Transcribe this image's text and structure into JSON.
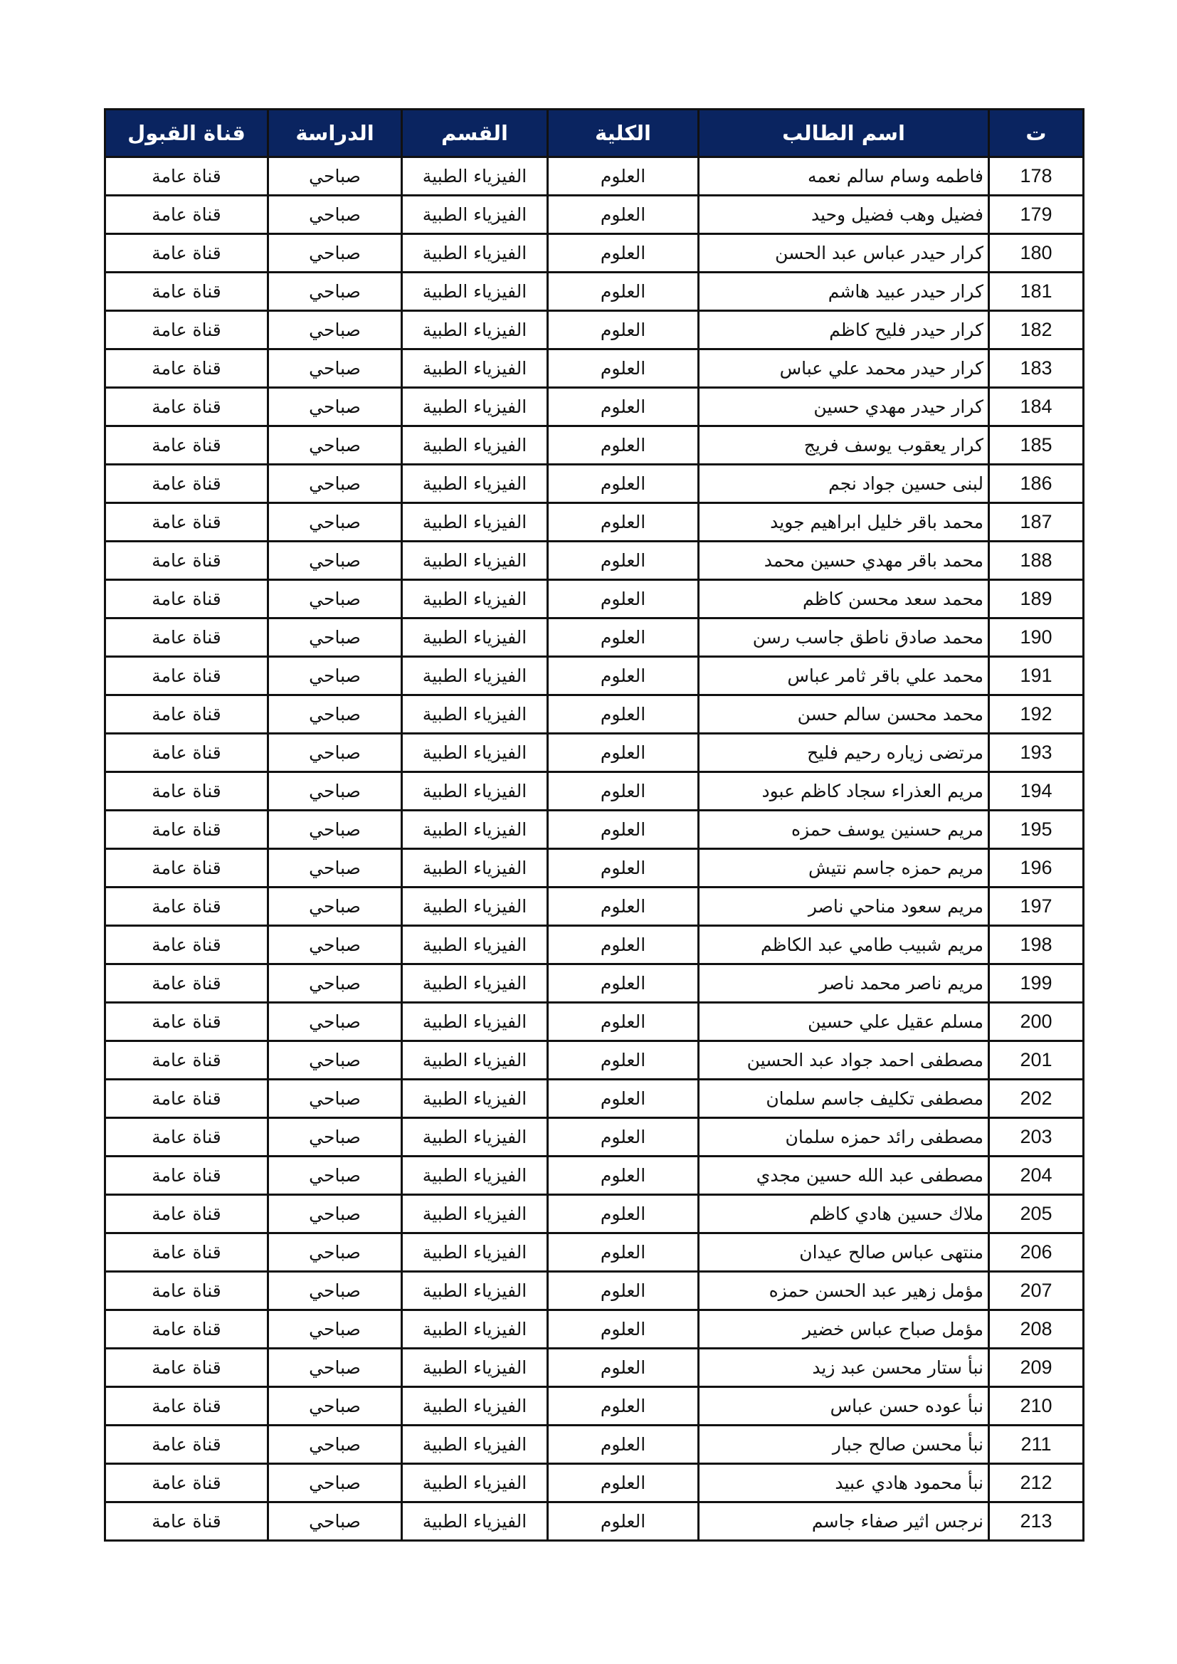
{
  "table": {
    "headers": {
      "seq": "ت",
      "name": "اسم الطالب",
      "college": "الكلية",
      "department": "القسم",
      "study": "الدراسة",
      "channel": "قناة القبول"
    },
    "header_color": "#0a2460",
    "college": "العلوم",
    "department": "الفيزياء الطبية",
    "study": "صباحي",
    "channel": "قناة عامة",
    "rows": [
      {
        "n": "178",
        "name": "فاطمه وسام سالم نعمه"
      },
      {
        "n": "179",
        "name": "فضيل وهب فضيل وحيد"
      },
      {
        "n": "180",
        "name": "كرار حيدر عباس عبد الحسن"
      },
      {
        "n": "181",
        "name": "كرار حيدر عبيد هاشم"
      },
      {
        "n": "182",
        "name": "كرار حيدر فليح كاظم"
      },
      {
        "n": "183",
        "name": "كرار حيدر محمد علي عباس"
      },
      {
        "n": "184",
        "name": "كرار حيدر مهدي حسين"
      },
      {
        "n": "185",
        "name": "كرار يعقوب يوسف فريج"
      },
      {
        "n": "186",
        "name": "لبنى حسين جواد نجم"
      },
      {
        "n": "187",
        "name": "محمد باقر خليل ابراهيم جويد"
      },
      {
        "n": "188",
        "name": "محمد باقر مهدي حسين محمد"
      },
      {
        "n": "189",
        "name": "محمد سعد محسن كاظم"
      },
      {
        "n": "190",
        "name": "محمد صادق ناطق جاسب رسن"
      },
      {
        "n": "191",
        "name": "محمد علي باقر ثامر عباس"
      },
      {
        "n": "192",
        "name": "محمد محسن سالم حسن"
      },
      {
        "n": "193",
        "name": "مرتضى زياره رحيم فليح"
      },
      {
        "n": "194",
        "name": "مريم العذراء سجاد كاظم عبود"
      },
      {
        "n": "195",
        "name": "مريم حسنين يوسف حمزه"
      },
      {
        "n": "196",
        "name": "مريم حمزه جاسم نتيش"
      },
      {
        "n": "197",
        "name": "مريم سعود مناحي ناصر"
      },
      {
        "n": "198",
        "name": "مريم شبيب طامي عبد الكاظم"
      },
      {
        "n": "199",
        "name": "مريم ناصر محمد ناصر"
      },
      {
        "n": "200",
        "name": "مسلم عقيل علي حسين"
      },
      {
        "n": "201",
        "name": "مصطفى احمد جواد عبد الحسين"
      },
      {
        "n": "202",
        "name": "مصطفى تكليف جاسم سلمان"
      },
      {
        "n": "203",
        "name": "مصطفى رائد حمزه سلمان"
      },
      {
        "n": "204",
        "name": "مصطفى عبد الله حسين مجدي"
      },
      {
        "n": "205",
        "name": "ملاك حسين هادي كاظم"
      },
      {
        "n": "206",
        "name": "منتهى عباس صالح عيدان"
      },
      {
        "n": "207",
        "name": "مؤمل زهير عبد الحسن حمزه"
      },
      {
        "n": "208",
        "name": "مؤمل صباح عباس خضير"
      },
      {
        "n": "209",
        "name": "نبأ ستار محسن عبد زيد"
      },
      {
        "n": "210",
        "name": "نبأ عوده حسن عباس"
      },
      {
        "n": "211",
        "name": "نبأ محسن صالح جبار"
      },
      {
        "n": "212",
        "name": "نبأ محمود هادي عبيد"
      },
      {
        "n": "213",
        "name": "نرجس اثير صفاء جاسم"
      }
    ]
  }
}
